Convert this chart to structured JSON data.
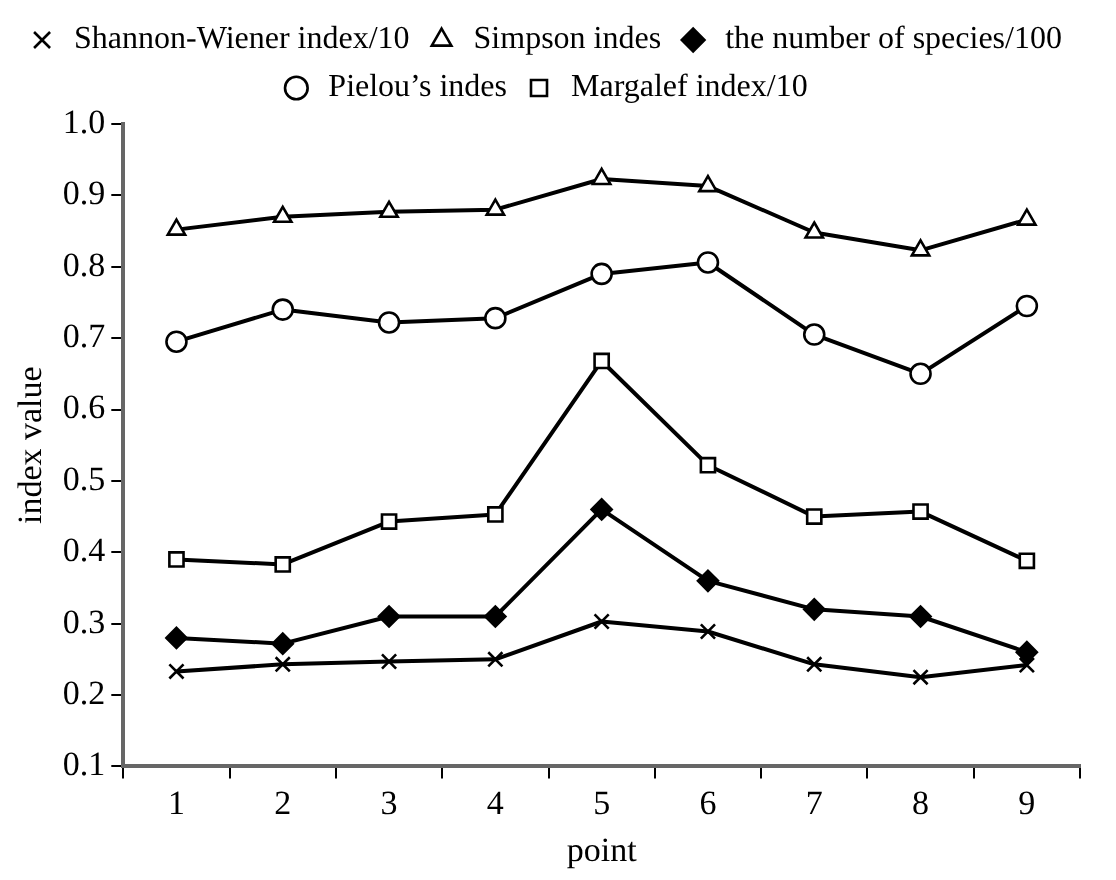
{
  "chart_data": {
    "type": "line",
    "xlabel": "point",
    "ylabel": "index value",
    "categories": [
      "1",
      "2",
      "3",
      "4",
      "5",
      "6",
      "7",
      "8",
      "9"
    ],
    "ylim": [
      0.1,
      1.0
    ],
    "yticks": [
      {
        "value": 0.1,
        "label": "0.1"
      },
      {
        "value": 0.2,
        "label": "0.2"
      },
      {
        "value": 0.3,
        "label": "0.3"
      },
      {
        "value": 0.4,
        "label": "0.4"
      },
      {
        "value": 0.5,
        "label": "0.5"
      },
      {
        "value": 0.6,
        "label": "0.6"
      },
      {
        "value": 0.7,
        "label": "0.7"
      },
      {
        "value": 0.8,
        "label": "0.8"
      },
      {
        "value": 0.9,
        "label": "0.9"
      },
      {
        "value": 1.0,
        "label": "1.0"
      }
    ],
    "grid": false,
    "legend": "top",
    "line_style": "solid",
    "series": [
      {
        "name": "Shannon-Wiener index/10",
        "color": "#000000",
        "marker": "cross",
        "values": [
          0.233,
          0.243,
          0.247,
          0.25,
          0.303,
          0.289,
          0.243,
          0.225,
          0.242
        ]
      },
      {
        "name": "Simpson indes",
        "color": "#000000",
        "marker": "triangle",
        "values": [
          0.852,
          0.87,
          0.877,
          0.88,
          0.923,
          0.913,
          0.848,
          0.823,
          0.866
        ]
      },
      {
        "name": "the number of species/100",
        "color": "#000000",
        "marker": "diamond",
        "values": [
          0.28,
          0.272,
          0.31,
          0.31,
          0.46,
          0.36,
          0.32,
          0.31,
          0.26
        ]
      },
      {
        "name": "Pielou’s indes",
        "color": "#000000",
        "marker": "circle",
        "values": [
          0.695,
          0.74,
          0.722,
          0.728,
          0.79,
          0.806,
          0.705,
          0.65,
          0.745
        ]
      },
      {
        "name": "Margalef index/10",
        "color": "#000000",
        "marker": "square",
        "values": [
          0.39,
          0.383,
          0.443,
          0.453,
          0.668,
          0.522,
          0.45,
          0.457,
          0.388
        ]
      }
    ]
  }
}
